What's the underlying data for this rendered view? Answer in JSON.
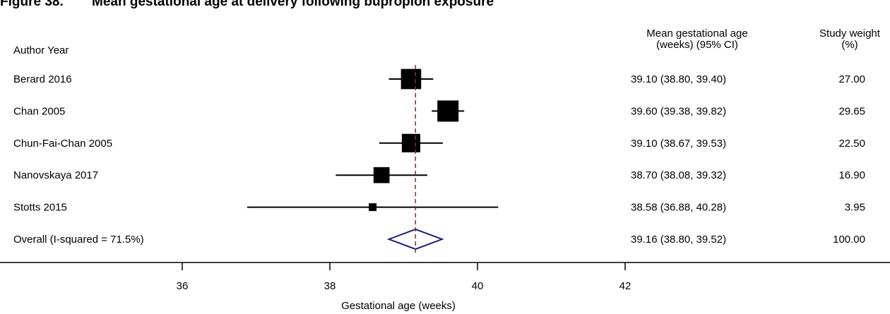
{
  "caption": {
    "number": "Figure 38.",
    "title": "Mean gestational age at delivery following bupropion exposure"
  },
  "chart_data": {
    "type": "forest",
    "columns": {
      "study": "Author Year",
      "estimate_line1": "Mean gestational age",
      "estimate_line2": "(weeks) (95% CI)",
      "weight_line1": "Study weight",
      "weight_line2": "(%)"
    },
    "xlabel": "Gestational age (weeks)",
    "xlim": [
      34,
      44
    ],
    "xticks": [
      36,
      38,
      40,
      42
    ],
    "reference_line": 39.16,
    "studies": [
      {
        "label": "Berard 2016",
        "mean": 39.1,
        "lower": 38.8,
        "upper": 39.4,
        "ci_text": "39.10 (38.80, 39.40)",
        "weight": 27.0,
        "weight_text": "27.00"
      },
      {
        "label": "Chan 2005",
        "mean": 39.6,
        "lower": 39.38,
        "upper": 39.82,
        "ci_text": "39.60 (39.38, 39.82)",
        "weight": 29.65,
        "weight_text": "29.65"
      },
      {
        "label": "Chun-Fai-Chan 2005",
        "mean": 39.1,
        "lower": 38.67,
        "upper": 39.53,
        "ci_text": "39.10 (38.67, 39.53)",
        "weight": 22.5,
        "weight_text": "22.50"
      },
      {
        "label": "Nanovskaya 2017",
        "mean": 38.7,
        "lower": 38.08,
        "upper": 39.32,
        "ci_text": "38.70 (38.08, 39.32)",
        "weight": 16.9,
        "weight_text": "16.90"
      },
      {
        "label": "Stotts 2015",
        "mean": 38.58,
        "lower": 36.88,
        "upper": 40.28,
        "ci_text": "38.58 (36.88, 40.28)",
        "weight": 3.95,
        "weight_text": "3.95"
      }
    ],
    "overall": {
      "label": "Overall (I-squared = 71.5%)",
      "mean": 39.16,
      "lower": 38.8,
      "upper": 39.52,
      "ci_text": "39.16 (38.80, 39.52)",
      "weight_text": "100.00"
    },
    "colors": {
      "marker": "#000000",
      "diamond": "#1a1a80",
      "reference": "#8b2c2c"
    }
  }
}
